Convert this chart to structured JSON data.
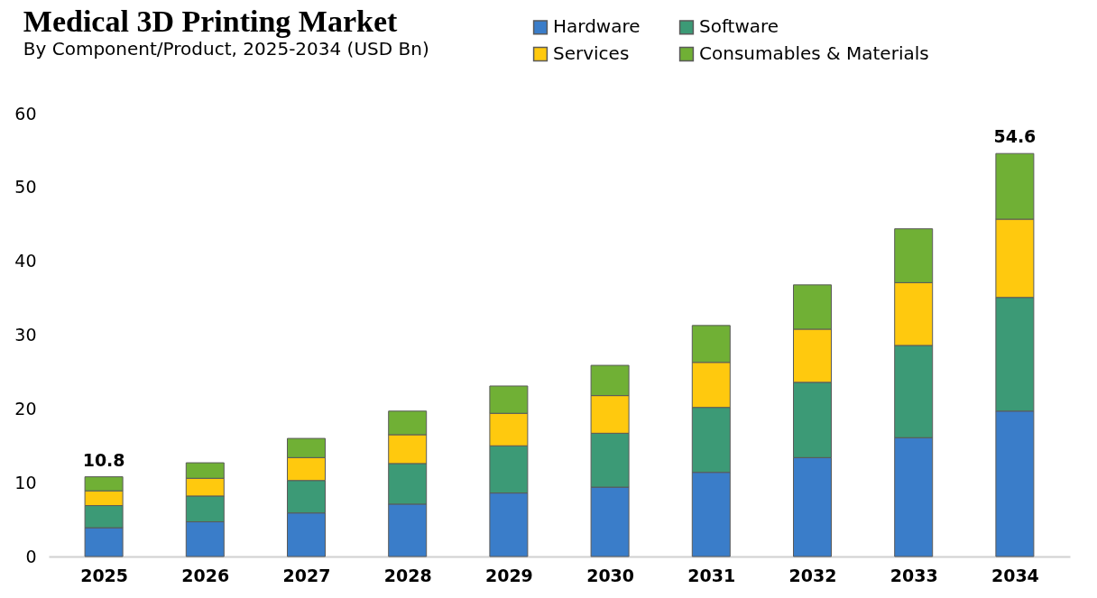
{
  "chart_data": {
    "type": "bar",
    "title": "Medical 3D Printing Market",
    "subtitle": "By Component/Product, 2025-2034 (USD Bn)",
    "categories": [
      "2025",
      "2026",
      "2027",
      "2028",
      "2029",
      "2030",
      "2031",
      "2032",
      "2033",
      "2034"
    ],
    "stacked": true,
    "series": [
      {
        "name": "Hardware",
        "color": "#3a7dc9",
        "values": [
          3.9,
          4.7,
          5.9,
          7.1,
          8.6,
          9.4,
          11.4,
          13.4,
          16.1,
          19.7
        ]
      },
      {
        "name": "Software",
        "color": "#3c9a76",
        "values": [
          3.0,
          3.5,
          4.4,
          5.5,
          6.4,
          7.3,
          8.8,
          10.2,
          12.5,
          15.4
        ]
      },
      {
        "name": "Services",
        "color": "#ffc90e",
        "values": [
          2.0,
          2.4,
          3.1,
          3.9,
          4.4,
          5.1,
          6.1,
          7.2,
          8.5,
          10.6
        ]
      },
      {
        "name": "Consumables & Materials",
        "color": "#70b035",
        "values": [
          1.9,
          2.1,
          2.6,
          3.2,
          3.7,
          4.1,
          5.0,
          6.0,
          7.3,
          8.9
        ]
      }
    ],
    "totals": [
      "10.8",
      null,
      null,
      null,
      null,
      null,
      null,
      null,
      null,
      "54.6"
    ],
    "ylim": [
      0,
      60
    ],
    "yticks": [
      0,
      10,
      20,
      30,
      40,
      50,
      60
    ],
    "grid": false,
    "legend": "top right"
  }
}
